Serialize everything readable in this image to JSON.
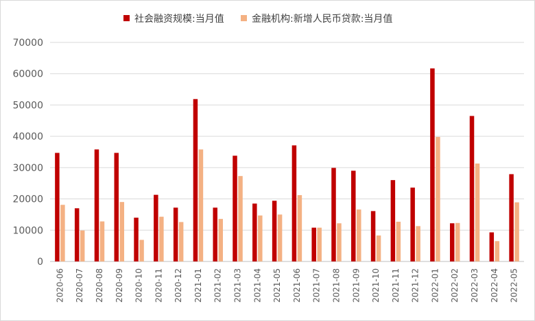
{
  "chart_data": {
    "type": "bar",
    "title": "",
    "xlabel": "",
    "ylabel": "",
    "ylim": [
      0,
      70000
    ],
    "yticks": [
      0,
      10000,
      20000,
      30000,
      40000,
      50000,
      60000,
      70000
    ],
    "grid": true,
    "legend_position": "top-center",
    "categories": [
      "2020-06",
      "2020-07",
      "2020-08",
      "2020-09",
      "2020-10",
      "2020-11",
      "2020-12",
      "2021-01",
      "2021-02",
      "2021-03",
      "2021-04",
      "2021-05",
      "2021-06",
      "2021-07",
      "2021-08",
      "2021-09",
      "2021-10",
      "2021-11",
      "2021-12",
      "2022-01",
      "2022-02",
      "2022-03",
      "2022-04",
      "2022-05"
    ],
    "series": [
      {
        "name": "社会融资规模:当月值",
        "color": "#c00000",
        "values": [
          34700,
          17000,
          35800,
          34700,
          14000,
          21300,
          17200,
          51900,
          17200,
          33800,
          18500,
          19400,
          37100,
          10800,
          29900,
          29000,
          16100,
          26000,
          23600,
          61700,
          12200,
          46500,
          9300,
          27900
        ]
      },
      {
        "name": "金融机构:新增人民币贷款:当月值",
        "color": "#f4b183",
        "values": [
          18100,
          9900,
          12800,
          19000,
          6900,
          14300,
          12600,
          35800,
          13600,
          27300,
          14700,
          15000,
          21200,
          10800,
          12200,
          16600,
          8300,
          12700,
          11300,
          39800,
          12300,
          31300,
          6500,
          18900
        ]
      }
    ]
  }
}
